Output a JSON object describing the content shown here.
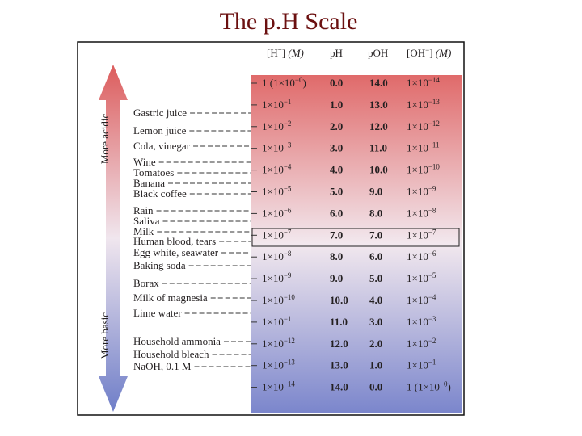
{
  "title": "The p.H Scale",
  "headers": [
    "[H",
    "+",
    "] ",
    "(M)",
    "pH",
    "pOH",
    "[OH",
    "−",
    "] ",
    "(M)"
  ],
  "arrow": {
    "top": "More acidic",
    "bottom": "More basic"
  },
  "rows": [
    {
      "h": [
        "1 (1×10",
        "−0",
        ")"
      ],
      "ph": "0.0",
      "poh": "14.0",
      "oh": [
        "1×10",
        "−14"
      ]
    },
    {
      "h": [
        "1×10",
        "−1"
      ],
      "ph": "1.0",
      "poh": "13.0",
      "oh": [
        "1×10",
        "−13"
      ]
    },
    {
      "h": [
        "1×10",
        "−2"
      ],
      "ph": "2.0",
      "poh": "12.0",
      "oh": [
        "1×10",
        "−12"
      ]
    },
    {
      "h": [
        "1×10",
        "−3"
      ],
      "ph": "3.0",
      "poh": "11.0",
      "oh": [
        "1×10",
        "−11"
      ]
    },
    {
      "h": [
        "1×10",
        "−4"
      ],
      "ph": "4.0",
      "poh": "10.0",
      "oh": [
        "1×10",
        "−10"
      ]
    },
    {
      "h": [
        "1×10",
        "−5"
      ],
      "ph": "5.0",
      "poh": "9.0",
      "oh": [
        "1×10",
        "−9"
      ]
    },
    {
      "h": [
        "1×10",
        "−6"
      ],
      "ph": "6.0",
      "poh": "8.0",
      "oh": [
        "1×10",
        "−8"
      ]
    },
    {
      "h": [
        "1×10",
        "−7"
      ],
      "ph": "7.0",
      "poh": "7.0",
      "oh": [
        "1×10",
        "−7"
      ]
    },
    {
      "h": [
        "1×10",
        "−8"
      ],
      "ph": "8.0",
      "poh": "6.0",
      "oh": [
        "1×10",
        "−6"
      ]
    },
    {
      "h": [
        "1×10",
        "−9"
      ],
      "ph": "9.0",
      "poh": "5.0",
      "oh": [
        "1×10",
        "−5"
      ]
    },
    {
      "h": [
        "1×10",
        "−10"
      ],
      "ph": "10.0",
      "poh": "4.0",
      "oh": [
        "1×10",
        "−4"
      ]
    },
    {
      "h": [
        "1×10",
        "−11"
      ],
      "ph": "11.0",
      "poh": "3.0",
      "oh": [
        "1×10",
        "−3"
      ]
    },
    {
      "h": [
        "1×10",
        "−12"
      ],
      "ph": "12.0",
      "poh": "2.0",
      "oh": [
        "1×10",
        "−2"
      ]
    },
    {
      "h": [
        "1×10",
        "−13"
      ],
      "ph": "13.0",
      "poh": "1.0",
      "oh": [
        "1×10",
        "−1"
      ]
    },
    {
      "h": [
        "1×10",
        "−14"
      ],
      "ph": "14.0",
      "poh": "0.0",
      "oh": [
        "1 (1×10",
        "−0",
        ")"
      ]
    }
  ],
  "substances": [
    "Gastric juice",
    "Lemon juice",
    "Cola, vinegar",
    "Wine",
    "Tomatoes",
    "Banana",
    "Black coffee",
    "Rain",
    "Saliva",
    "Milk",
    "Human blood, tears",
    "Egg white, seawater",
    "Baking soda",
    "Borax",
    "Milk of magnesia",
    "Lime water",
    "Household ammonia",
    "Household bleach",
    "NaOH, 0.1 M"
  ]
}
